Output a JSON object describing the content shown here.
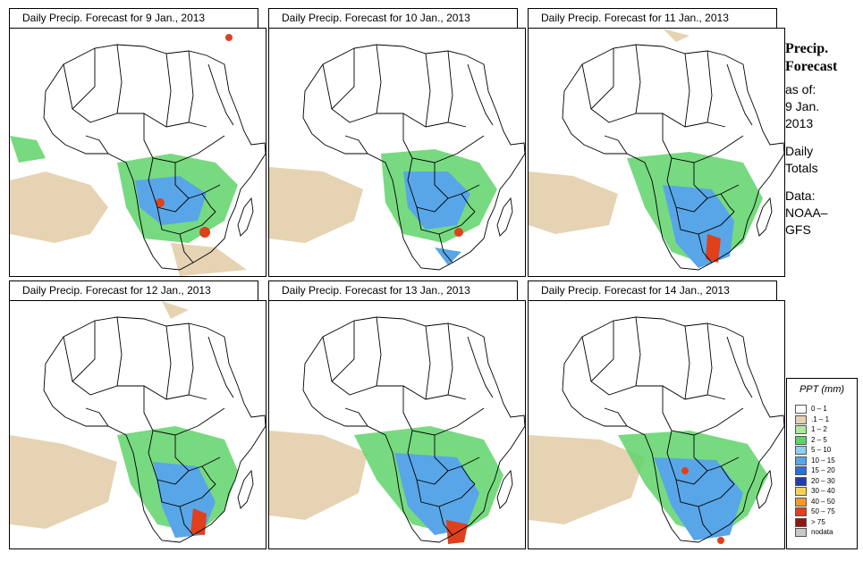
{
  "panels": [
    {
      "title": "Daily Precip. Forecast for  9 Jan., 2013"
    },
    {
      "title": "Daily Precip. Forecast for  10 Jan., 2013"
    },
    {
      "title": "Daily Precip. Forecast for  11 Jan., 2013"
    },
    {
      "title": "Daily Precip. Forecast for  12 Jan., 2013"
    },
    {
      "title": "Daily Precip. Forecast for  13 Jan., 2013"
    },
    {
      "title": "Daily Precip. Forecast for  14 Jan., 2013"
    }
  ],
  "side": {
    "title_line1": "Precip.",
    "title_line2": "Forecast",
    "asof_line1": "as of:",
    "asof_line2": "9 Jan.",
    "asof_line3": "2013",
    "totals_line1": "Daily",
    "totals_line2": "Totals",
    "data_line1": "Data:",
    "data_line2": "NOAA–",
    "data_line3": "GFS"
  },
  "legend": {
    "title": "PPT (mm)",
    "items": [
      {
        "label": "0 – 1",
        "color": "#ffffff"
      },
      {
        "label": ".1 – 1",
        "color": "#e6d3b3"
      },
      {
        "label": "1 – 2",
        "color": "#aee89c"
      },
      {
        "label": "2 – 5",
        "color": "#5fd36a"
      },
      {
        "label": "5 – 10",
        "color": "#8fd0ee"
      },
      {
        "label": "10 – 15",
        "color": "#58a6e8"
      },
      {
        "label": "15 – 20",
        "color": "#2e6fd8"
      },
      {
        "label": "20 – 30",
        "color": "#1f3fb0"
      },
      {
        "label": "30 – 40",
        "color": "#f4d25a"
      },
      {
        "label": "40 – 50",
        "color": "#f29a2a"
      },
      {
        "label": "50 – 75",
        "color": "#e0401c"
      },
      {
        "label": "> 75",
        "color": "#8c1a10"
      },
      {
        "label": "nodata",
        "color": "#c8c8c8"
      }
    ]
  }
}
